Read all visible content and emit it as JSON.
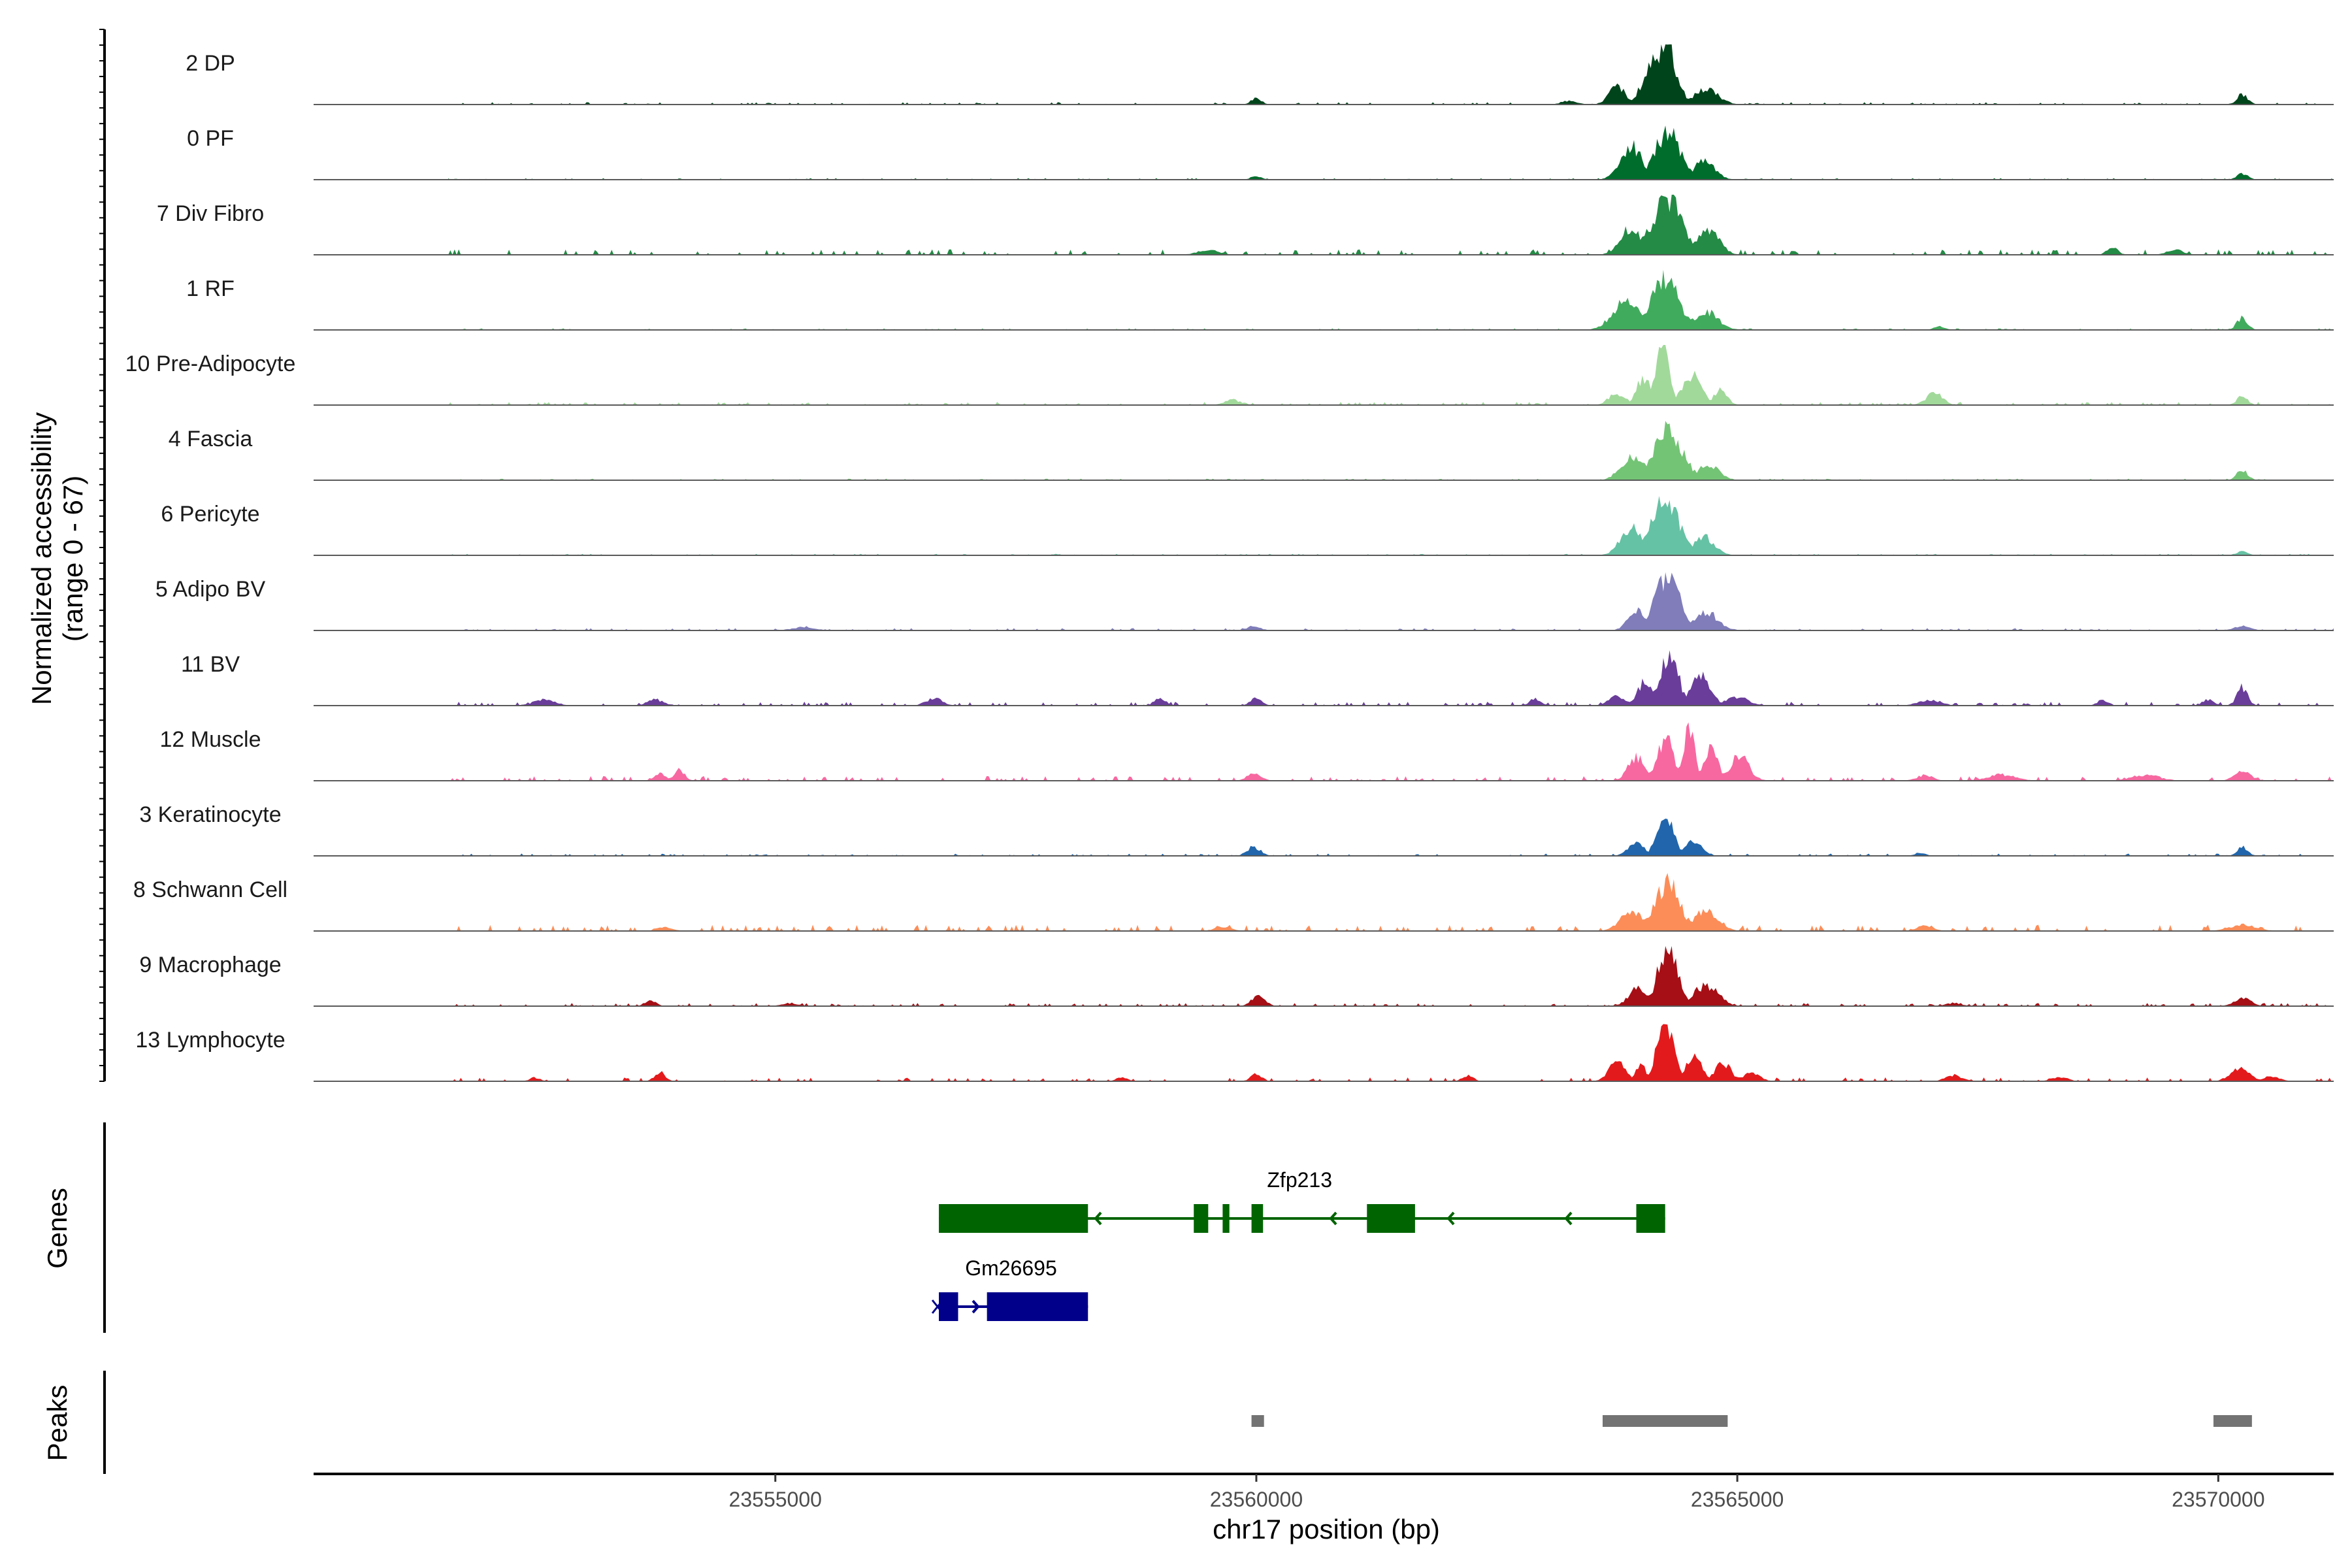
{
  "chart_data": {
    "type": "area",
    "chromosome": "chr17",
    "xlabel": "chr17 position (bp)",
    "ylabel_line1": "Normalized accessibility",
    "ylabel_line2": "(range 0 - 67)",
    "y_range": [
      0,
      67
    ],
    "xlim": [
      23550200,
      23571200
    ],
    "x_ticks": [
      23555000,
      23560000,
      23565000,
      23570000
    ],
    "x_tick_labels": [
      "23555000",
      "23560000",
      "23565000",
      "23570000"
    ],
    "grid": false,
    "tracks": [
      {
        "name": "2 DP",
        "color": "#00441b",
        "peaks": [
          [
            23563600,
            23563900,
            0.3
          ],
          [
            23563950,
            23564450,
            0.9
          ],
          [
            23564200,
            23564400,
            1.0
          ],
          [
            23564450,
            23564900,
            0.25
          ],
          [
            23559900,
            23560100,
            0.1
          ],
          [
            23570150,
            23570350,
            0.17
          ],
          [
            23563100,
            23563400,
            0.06
          ]
        ],
        "noise": 0.03
      },
      {
        "name": "0 PF",
        "color": "#006d2c",
        "peaks": [
          [
            23563700,
            23564100,
            0.55
          ],
          [
            23564050,
            23564500,
            0.8
          ],
          [
            23564450,
            23564850,
            0.3
          ],
          [
            23570150,
            23570350,
            0.1
          ],
          [
            23559900,
            23560100,
            0.06
          ]
        ],
        "noise": 0.02
      },
      {
        "name": "7 Div Fibro",
        "color": "#238b45",
        "peaks": [
          [
            23563700,
            23564100,
            0.45
          ],
          [
            23564000,
            23564550,
            0.95
          ],
          [
            23564500,
            23564900,
            0.4
          ],
          [
            23568800,
            23569000,
            0.12
          ],
          [
            23569400,
            23569700,
            0.08
          ],
          [
            23559300,
            23559700,
            0.08
          ]
        ],
        "noise": 0.07
      },
      {
        "name": "1 RF",
        "color": "#41ab5d",
        "peaks": [
          [
            23563600,
            23564100,
            0.5
          ],
          [
            23564000,
            23564500,
            0.85
          ],
          [
            23564450,
            23564900,
            0.3
          ],
          [
            23570150,
            23570350,
            0.2
          ],
          [
            23567000,
            23567200,
            0.06
          ]
        ],
        "noise": 0.02
      },
      {
        "name": "10 Pre-Adipocyte",
        "color": "#a1d99b",
        "peaks": [
          [
            23563600,
            23563900,
            0.2
          ],
          [
            23563900,
            23564150,
            0.45
          ],
          [
            23564100,
            23564350,
            1.0
          ],
          [
            23564350,
            23564700,
            0.5
          ],
          [
            23564700,
            23564950,
            0.25
          ],
          [
            23566900,
            23567200,
            0.2
          ],
          [
            23570150,
            23570350,
            0.15
          ],
          [
            23559600,
            23559900,
            0.09
          ]
        ],
        "noise": 0.04
      },
      {
        "name": "4 Fascia",
        "color": "#74c476",
        "peaks": [
          [
            23563700,
            23564100,
            0.4
          ],
          [
            23564000,
            23564550,
            0.8
          ],
          [
            23564500,
            23564900,
            0.25
          ],
          [
            23570150,
            23570350,
            0.17
          ]
        ],
        "noise": 0.02
      },
      {
        "name": "6 Pericyte",
        "color": "#66c2a4",
        "peaks": [
          [
            23563700,
            23564100,
            0.45
          ],
          [
            23564000,
            23564500,
            0.92
          ],
          [
            23564450,
            23564850,
            0.3
          ],
          [
            23570150,
            23570350,
            0.07
          ]
        ],
        "noise": 0.02
      },
      {
        "name": "5 Adipo BV",
        "color": "#807dba",
        "peaks": [
          [
            23563800,
            23564100,
            0.35
          ],
          [
            23564050,
            23564500,
            0.9
          ],
          [
            23564450,
            23564900,
            0.3
          ],
          [
            23570100,
            23570400,
            0.07
          ],
          [
            23559850,
            23560100,
            0.07
          ],
          [
            23555100,
            23555500,
            0.06
          ]
        ],
        "noise": 0.03
      },
      {
        "name": "11 BV",
        "color": "#6a3d9a",
        "peaks": [
          [
            23563600,
            23563900,
            0.15
          ],
          [
            23563900,
            23564200,
            0.4
          ],
          [
            23564150,
            23564450,
            0.9
          ],
          [
            23564450,
            23564800,
            0.5
          ],
          [
            23564800,
            23565200,
            0.15
          ],
          [
            23570150,
            23570350,
            0.3
          ],
          [
            23559900,
            23560100,
            0.15
          ],
          [
            23558900,
            23559100,
            0.13
          ],
          [
            23556500,
            23556800,
            0.12
          ],
          [
            23551300,
            23551500,
            0.1
          ],
          [
            23566800,
            23567200,
            0.1
          ],
          [
            23568700,
            23568900,
            0.1
          ],
          [
            23569800,
            23570000,
            0.1
          ],
          [
            23553600,
            23553900,
            0.1
          ],
          [
            23552400,
            23552800,
            0.1
          ],
          [
            23562800,
            23563000,
            0.12
          ]
        ],
        "noise": 0.05
      },
      {
        "name": "12 Muscle",
        "color": "#f768a1",
        "peaks": [
          [
            23563800,
            23564100,
            0.4
          ],
          [
            23564100,
            23564400,
            0.7
          ],
          [
            23564400,
            23564600,
            0.95
          ],
          [
            23564600,
            23564850,
            0.6
          ],
          [
            23564850,
            23565200,
            0.4
          ],
          [
            23551000,
            23551200,
            0.12
          ],
          [
            23553700,
            23553900,
            0.12
          ],
          [
            23553900,
            23554100,
            0.18
          ],
          [
            23559850,
            23560100,
            0.13
          ],
          [
            23567500,
            23568000,
            0.1
          ],
          [
            23569000,
            23569500,
            0.1
          ],
          [
            23570100,
            23570400,
            0.15
          ],
          [
            23566800,
            23567100,
            0.09
          ]
        ],
        "noise": 0.06
      },
      {
        "name": "3 Keratinocyte",
        "color": "#2166ac",
        "peaks": [
          [
            23563800,
            23564100,
            0.2
          ],
          [
            23564100,
            23564400,
            0.65
          ],
          [
            23564400,
            23564700,
            0.25
          ],
          [
            23559850,
            23560100,
            0.15
          ],
          [
            23570150,
            23570350,
            0.15
          ],
          [
            23566800,
            23567000,
            0.05
          ]
        ],
        "noise": 0.03
      },
      {
        "name": "8 Schwann Cell",
        "color": "#fc8d59",
        "peaks": [
          [
            23563700,
            23564100,
            0.35
          ],
          [
            23564050,
            23564500,
            0.8
          ],
          [
            23564450,
            23564900,
            0.35
          ],
          [
            23570000,
            23570500,
            0.1
          ],
          [
            23566800,
            23567100,
            0.08
          ],
          [
            23559500,
            23559800,
            0.07
          ],
          [
            23553700,
            23554000,
            0.06
          ]
        ],
        "noise": 0.08
      },
      {
        "name": "9 Macrophage",
        "color": "#a50f15",
        "peaks": [
          [
            23563800,
            23564150,
            0.3
          ],
          [
            23564100,
            23564450,
            1.0
          ],
          [
            23564450,
            23564900,
            0.35
          ],
          [
            23559900,
            23560150,
            0.18
          ],
          [
            23553600,
            23553800,
            0.1
          ],
          [
            23570100,
            23570400,
            0.14
          ],
          [
            23551200,
            23551500,
            0.06
          ],
          [
            23555000,
            23555300,
            0.05
          ],
          [
            23567100,
            23567400,
            0.05
          ]
        ],
        "noise": 0.04
      },
      {
        "name": "13 Lymphocyte",
        "color": "#e31a1c",
        "peaks": [
          [
            23563600,
            23563900,
            0.35
          ],
          [
            23563900,
            23564100,
            0.25
          ],
          [
            23564100,
            23564400,
            1.0
          ],
          [
            23564400,
            23564700,
            0.4
          ],
          [
            23564700,
            23565000,
            0.3
          ],
          [
            23565000,
            23565300,
            0.15
          ],
          [
            23553700,
            23553900,
            0.15
          ],
          [
            23551300,
            23551500,
            0.08
          ],
          [
            23559900,
            23560100,
            0.13
          ],
          [
            23562100,
            23562300,
            0.1
          ],
          [
            23570050,
            23570400,
            0.2
          ],
          [
            23567100,
            23567400,
            0.1
          ],
          [
            23568200,
            23568500,
            0.07
          ],
          [
            23570400,
            23570700,
            0.08
          ],
          [
            23558500,
            23558700,
            0.07
          ],
          [
            23552400,
            23552600,
            0.06
          ]
        ],
        "noise": 0.05
      }
    ],
    "genes_panel_label": "Genes",
    "genes": [
      {
        "name": "Zfp213",
        "strand": "-",
        "color": "#006400",
        "row": 0,
        "start": 23556700,
        "end": 23564250,
        "exons": [
          [
            23556700,
            23558250
          ],
          [
            23559350,
            23559500
          ],
          [
            23559650,
            23559720
          ],
          [
            23559950,
            23560070
          ],
          [
            23561150,
            23561650
          ],
          [
            23563950,
            23564250
          ]
        ]
      },
      {
        "name": "Gm26695",
        "strand": "+",
        "color": "#00008b",
        "row": 1,
        "start": 23556700,
        "end": 23558250,
        "exons": [
          [
            23556700,
            23556900
          ],
          [
            23557200,
            23558250
          ]
        ]
      }
    ],
    "peaks_panel_label": "Peaks",
    "peak_regions": [
      [
        23559950,
        23560080
      ],
      [
        23563600,
        23564900
      ],
      [
        23569950,
        23570350
      ]
    ],
    "peak_color": "#737373"
  }
}
